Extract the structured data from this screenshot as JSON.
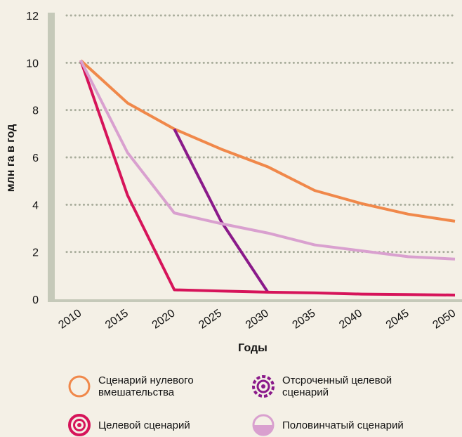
{
  "chart_data": {
    "type": "line",
    "x_label": "Годы",
    "y_label": "млн га в год",
    "x": [
      2010,
      2015,
      2020,
      2025,
      2030,
      2035,
      2040,
      2045,
      2050
    ],
    "xlim": [
      2010,
      2050
    ],
    "xticks": [
      2010,
      2015,
      2020,
      2025,
      2030,
      2035,
      2040,
      2045,
      2050
    ],
    "ylim": [
      0,
      12
    ],
    "yticks": [
      0,
      2,
      4,
      6,
      8,
      10,
      12
    ],
    "grid": true,
    "series": [
      {
        "name": "Сценарий нулевого вмешательства",
        "color": "#f0884a",
        "values": [
          10.1,
          8.3,
          7.2,
          6.35,
          5.6,
          4.6,
          4.05,
          3.6,
          3.3
        ]
      },
      {
        "name": "Отсроченный целевой сценарий",
        "color": "#8a1a8a",
        "values": [
          null,
          null,
          7.2,
          3.3,
          0.3,
          null,
          null,
          null,
          null
        ]
      },
      {
        "name": "Целевой сценарий",
        "color": "#d6145a",
        "values": [
          10.1,
          4.4,
          0.4,
          0.35,
          0.3,
          0.27,
          0.22,
          0.2,
          0.18
        ]
      },
      {
        "name": "Половинчатый сценарий",
        "color": "#d9a0cf",
        "values": [
          10.1,
          6.2,
          3.65,
          3.2,
          2.8,
          2.3,
          2.05,
          1.8,
          1.7
        ]
      }
    ]
  }
}
